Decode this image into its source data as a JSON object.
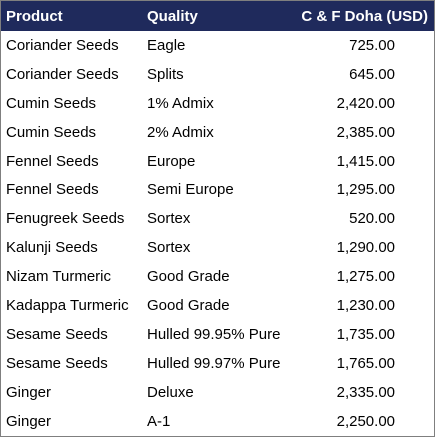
{
  "table": {
    "headers": {
      "product": "Product",
      "quality": "Quality",
      "price": "C & F Doha (USD)"
    },
    "rows": [
      {
        "product": "Coriander Seeds",
        "quality": "Eagle",
        "price": "725.00"
      },
      {
        "product": "Coriander Seeds",
        "quality": "Splits",
        "price": "645.00"
      },
      {
        "product": "Cumin Seeds",
        "quality": "1% Admix",
        "price": "2,420.00"
      },
      {
        "product": "Cumin Seeds",
        "quality": "2% Admix",
        "price": "2,385.00"
      },
      {
        "product": "Fennel Seeds",
        "quality": "Europe",
        "price": "1,415.00"
      },
      {
        "product": "Fennel Seeds",
        "quality": "Semi Europe",
        "price": "1,295.00"
      },
      {
        "product": "Fenugreek Seeds",
        "quality": "Sortex",
        "price": "520.00"
      },
      {
        "product": "Kalunji Seeds",
        "quality": "Sortex",
        "price": "1,290.00"
      },
      {
        "product": "Nizam Turmeric",
        "quality": "Good Grade",
        "price": "1,275.00"
      },
      {
        "product": "Kadappa Turmeric",
        "quality": "Good Grade",
        "price": "1,230.00"
      },
      {
        "product": "Sesame Seeds",
        "quality": "Hulled 99.95% Pure",
        "price": "1,735.00"
      },
      {
        "product": "Sesame Seeds",
        "quality": "Hulled 99.97% Pure",
        "price": "1,765.00"
      },
      {
        "product": "Ginger",
        "quality": "Deluxe",
        "price": "2,335.00"
      },
      {
        "product": "Ginger",
        "quality": "A-1",
        "price": "2,250.00"
      }
    ]
  },
  "colors": {
    "header_background": "#1f2a5c",
    "header_text": "#ffffff",
    "border": "#7f7f7f"
  }
}
